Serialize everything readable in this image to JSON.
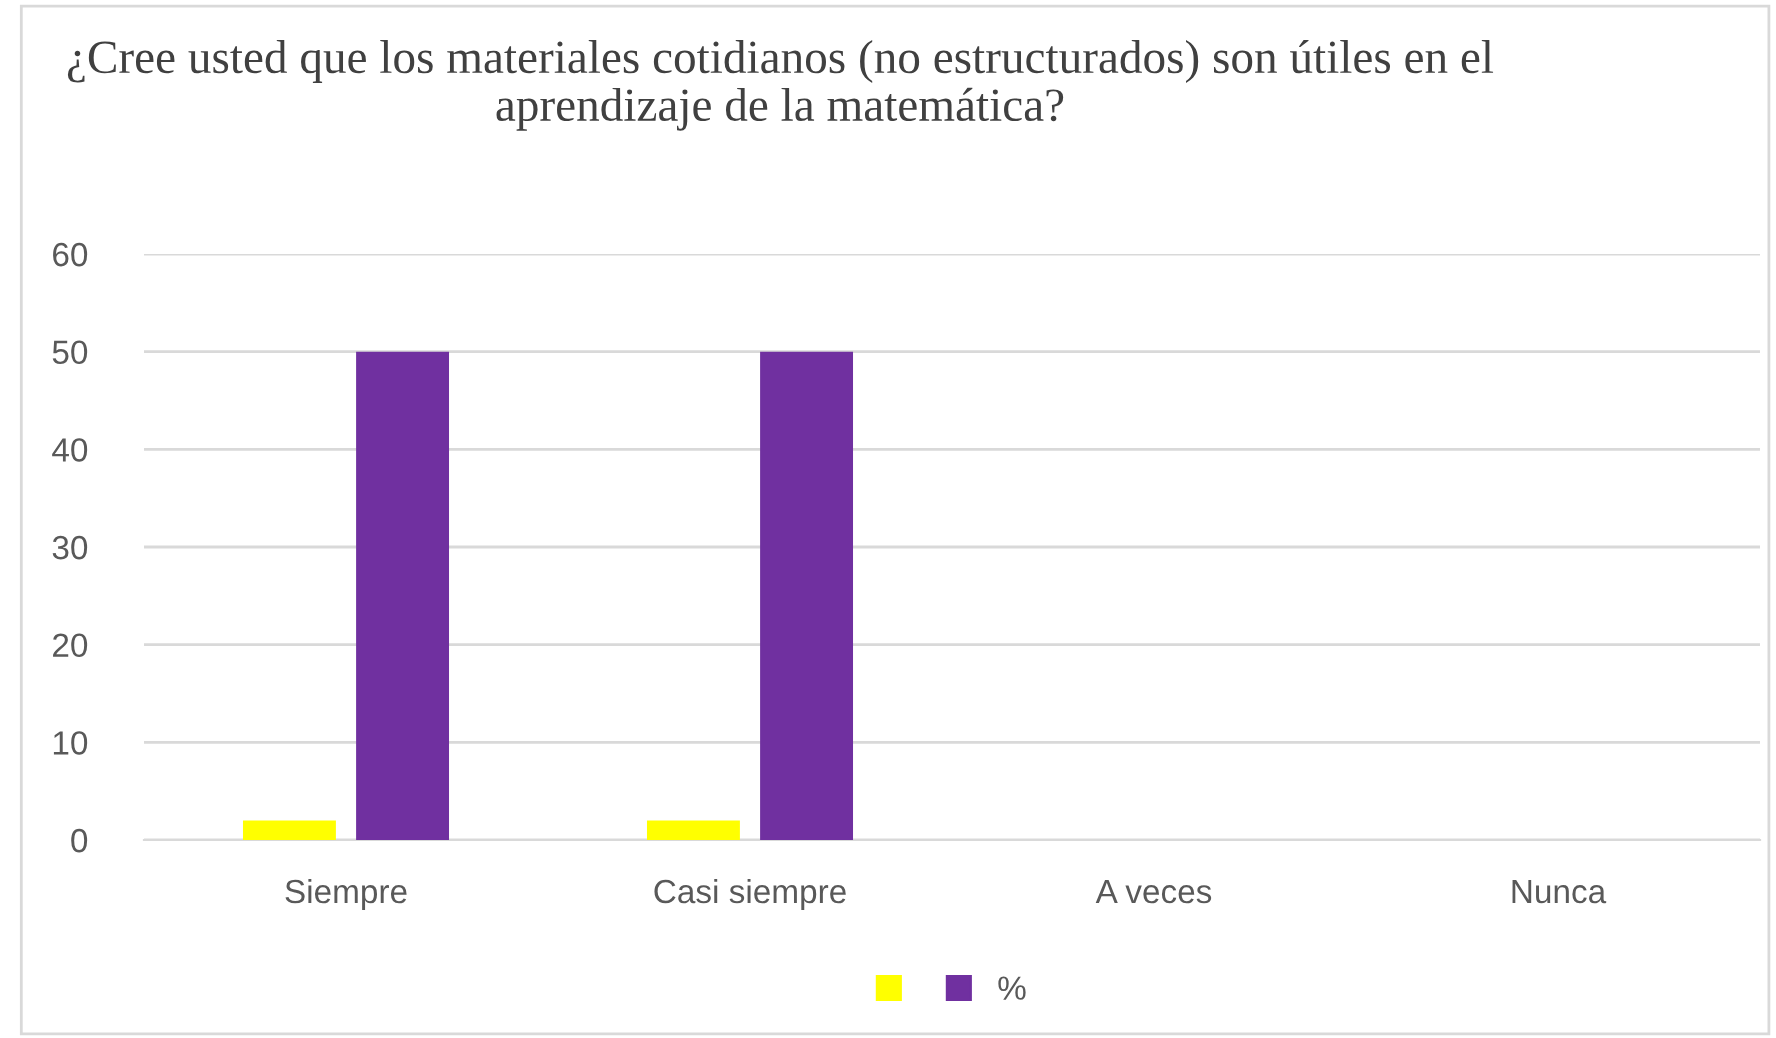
{
  "chart_data": {
    "type": "bar",
    "title": "¿Cree usted que los materiales cotidianos (no estructurados) son útiles en el aprendizaje de la matemática?",
    "categories": [
      "Siempre",
      "Casi siempre",
      "A veces",
      "Nunca"
    ],
    "series": [
      {
        "color": "#ffff00",
        "values": [
          2,
          2,
          0,
          0
        ]
      },
      {
        "name": "%",
        "color": "#7030a0",
        "values": [
          50,
          50,
          0,
          0
        ]
      }
    ],
    "ylim": [
      0,
      60
    ],
    "yticks": [
      0,
      10,
      20,
      30,
      40,
      50,
      60
    ],
    "grid": "y",
    "legend": "bottom"
  }
}
